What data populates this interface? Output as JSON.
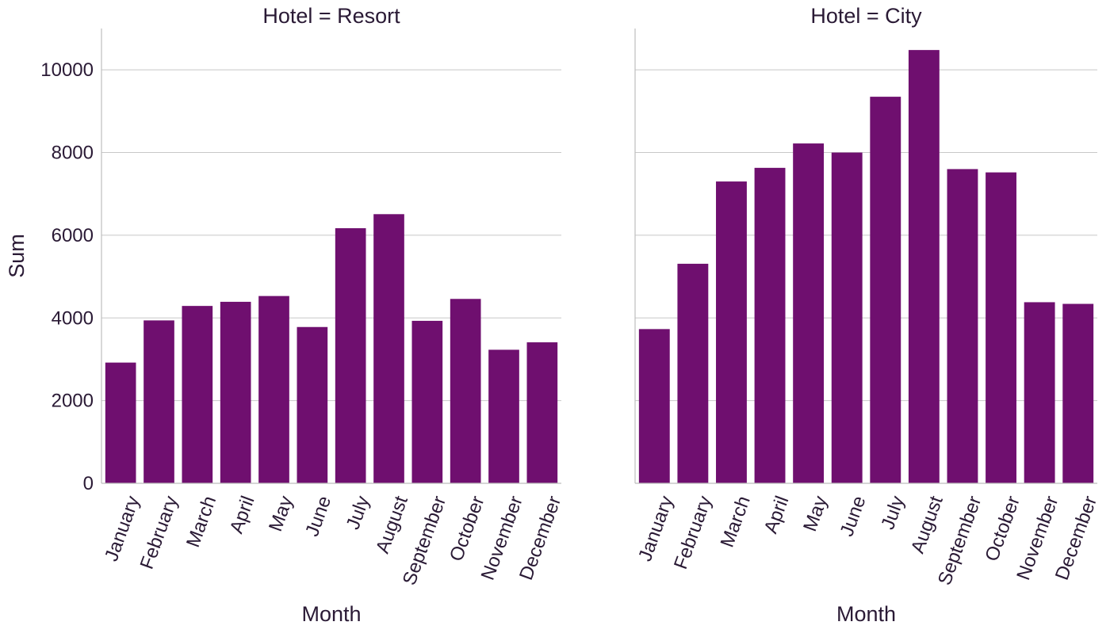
{
  "chart_data": {
    "type": "bar",
    "bar_color": "#6f0f6f",
    "ylabel": "Sum",
    "ylim": [
      0,
      11000
    ],
    "yticks": [
      0,
      2000,
      4000,
      6000,
      8000,
      10000
    ],
    "grid": "horizontal",
    "categories": [
      "January",
      "February",
      "March",
      "April",
      "May",
      "June",
      "July",
      "August",
      "September",
      "October",
      "November",
      "December"
    ],
    "panels": [
      {
        "title": "Hotel = Resort",
        "xlabel": "Month",
        "values": [
          2920,
          3940,
          4290,
          4390,
          4530,
          3780,
          6170,
          6510,
          3930,
          4460,
          3230,
          3410
        ]
      },
      {
        "title": "Hotel = City",
        "xlabel": "Month",
        "values": [
          3730,
          5310,
          7300,
          7630,
          8220,
          8000,
          9350,
          10480,
          7600,
          7520,
          4380,
          4340
        ]
      }
    ]
  }
}
